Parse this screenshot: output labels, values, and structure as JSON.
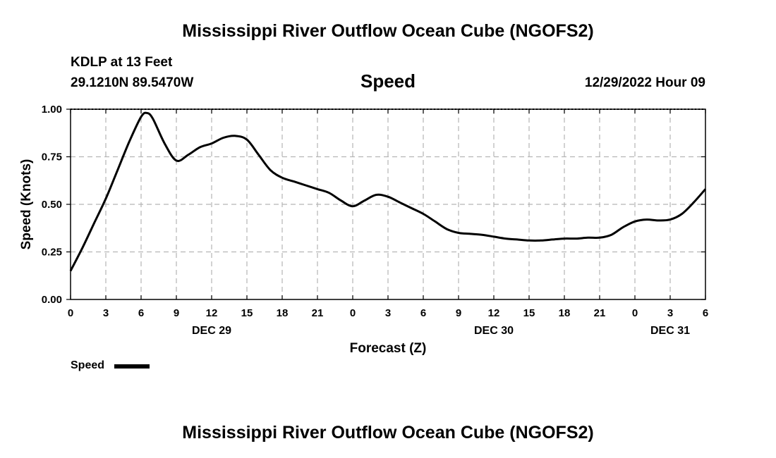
{
  "header": {
    "title": "Mississippi River Outflow Ocean Cube (NGOFS2)",
    "station": "KDLP at 13 Feet",
    "coords": "29.1210N  89.5470W",
    "chart_name": "Speed",
    "datetime": "12/29/2022 Hour 09"
  },
  "legend": {
    "label": "Speed"
  },
  "footer": {
    "title": "Mississippi River Outflow Ocean Cube (NGOFS2)"
  },
  "chart_data": {
    "type": "line",
    "title": "Speed",
    "xlabel": "Forecast (Z)",
    "ylabel": "Speed (Knots)",
    "xlim": [
      0,
      54
    ],
    "ylim": [
      0,
      1
    ],
    "x_ticks": [
      0,
      3,
      6,
      9,
      12,
      15,
      18,
      21,
      24,
      27,
      30,
      33,
      36,
      39,
      42,
      45,
      48,
      51,
      54
    ],
    "x_tick_labels": [
      "0",
      "3",
      "6",
      "9",
      "12",
      "15",
      "18",
      "21",
      "0",
      "3",
      "6",
      "9",
      "12",
      "15",
      "18",
      "21",
      "0",
      "3",
      "6"
    ],
    "y_ticks": [
      0,
      0.25,
      0.5,
      0.75,
      1.0
    ],
    "y_tick_labels": [
      "0.00",
      "0.25",
      "0.50",
      "0.75",
      "1.00"
    ],
    "date_labels": [
      {
        "x": 12,
        "label": "DEC 29"
      },
      {
        "x": 36,
        "label": "DEC 30"
      },
      {
        "x": 51,
        "label": "DEC 31"
      }
    ],
    "grid": true,
    "legend": "bottom-left",
    "series": [
      {
        "name": "Speed",
        "color": "#000000",
        "x": [
          0,
          1,
          2,
          3,
          4,
          5,
          6,
          6.5,
          7,
          8,
          9,
          10,
          11,
          12,
          13,
          14,
          15,
          16,
          17,
          18,
          19,
          20,
          21,
          22,
          23,
          24,
          25,
          26,
          27,
          28,
          29,
          30,
          31,
          32,
          33,
          34,
          35,
          36,
          37,
          38,
          39,
          40,
          41,
          42,
          43,
          44,
          45,
          46,
          47,
          48,
          49,
          50,
          51,
          52,
          53,
          54
        ],
        "values": [
          0.15,
          0.27,
          0.4,
          0.53,
          0.68,
          0.83,
          0.96,
          0.98,
          0.95,
          0.82,
          0.73,
          0.76,
          0.8,
          0.82,
          0.85,
          0.86,
          0.84,
          0.76,
          0.68,
          0.64,
          0.62,
          0.6,
          0.58,
          0.56,
          0.52,
          0.49,
          0.52,
          0.55,
          0.54,
          0.51,
          0.48,
          0.45,
          0.41,
          0.37,
          0.35,
          0.345,
          0.34,
          0.33,
          0.32,
          0.315,
          0.31,
          0.31,
          0.315,
          0.32,
          0.32,
          0.325,
          0.325,
          0.34,
          0.38,
          0.41,
          0.42,
          0.415,
          0.42,
          0.45,
          0.51,
          0.58
        ]
      }
    ]
  }
}
